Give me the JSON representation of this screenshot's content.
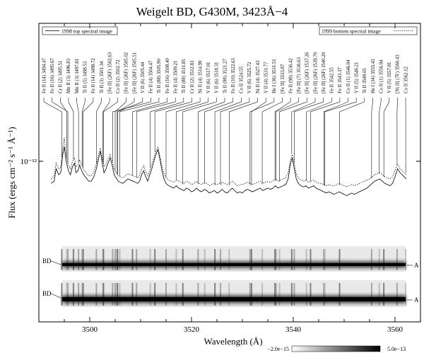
{
  "chart_data": {
    "type": "line",
    "title": "Weigelt BD, G430M, 3423Å−4",
    "xlabel": "Wavelength (Å)",
    "ylabel": "Flux (ergs cm⁻² s⁻¹ Å⁻¹)",
    "y_scale": "log",
    "y_tick_label": "10⁻¹²",
    "y_tick_value": 1e-12,
    "xlim": [
      3490,
      3565
    ],
    "x_ticks": [
      3500,
      3520,
      3540,
      3560
    ],
    "x_tick_labels": [
      "3500",
      "3520",
      "3540",
      "3560"
    ],
    "legend_top_left": "1998 top spectral image",
    "legend_top_right": "1999 bottom spectral image",
    "series": [
      {
        "name": "1998 top spectral image",
        "style": "solid",
        "x": [
          3492.4,
          3493.0,
          3493.4,
          3493.9,
          3494.3,
          3494.7,
          3495.0,
          3495.3,
          3495.8,
          3496.2,
          3496.6,
          3497.0,
          3497.3,
          3497.7,
          3498.0,
          3498.4,
          3498.8,
          3499.3,
          3499.8,
          3500.3,
          3500.8,
          3501.3,
          3501.8,
          3502.1,
          3502.4,
          3502.8,
          3503.2,
          3503.6,
          3504.0,
          3504.4,
          3504.8,
          3505.2,
          3505.6,
          3506.0,
          3506.5,
          3507.0,
          3507.5,
          3508.0,
          3508.5,
          3509.0,
          3509.4,
          3509.8,
          3510.2,
          3510.6,
          3511.0,
          3511.4,
          3511.8,
          3512.2,
          3512.6,
          3513.0,
          3513.4,
          3513.8,
          3514.2,
          3514.6,
          3515.0,
          3515.5,
          3516.0,
          3516.5,
          3517.0,
          3517.5,
          3518.0,
          3518.5,
          3519.0,
          3519.5,
          3520.0,
          3520.5,
          3521.0,
          3521.5,
          3522.0,
          3522.5,
          3523.0,
          3523.5,
          3524.0,
          3524.5,
          3525.0,
          3525.5,
          3526.0,
          3526.5,
          3527.0,
          3527.5,
          3528.0,
          3528.5,
          3529.0,
          3529.5,
          3530.0,
          3530.5,
          3531.0,
          3531.5,
          3532.0,
          3532.5,
          3533.0,
          3533.5,
          3534.0,
          3534.5,
          3535.0,
          3535.5,
          3536.0,
          3536.5,
          3537.0,
          3537.5,
          3538.0,
          3538.5,
          3539.0,
          3539.4,
          3539.8,
          3540.2,
          3540.6,
          3541.0,
          3541.5,
          3542.0,
          3542.5,
          3543.0,
          3543.5,
          3544.0,
          3544.5,
          3545.0,
          3545.5,
          3546.0,
          3546.5,
          3547.0,
          3547.5,
          3548.0,
          3548.5,
          3549.0,
          3549.5,
          3550.0,
          3550.5,
          3551.0,
          3551.5,
          3552.0,
          3552.5,
          3553.0,
          3553.5,
          3554.0,
          3554.5,
          3555.0,
          3555.5,
          3556.0,
          3556.5,
          3557.0,
          3557.5,
          3558.0,
          3558.5,
          3559.0,
          3559.5,
          3560.0,
          3560.5,
          3561.0,
          3561.4,
          3561.8,
          3562.2
        ],
        "y": [
          0.78,
          0.8,
          0.92,
          0.86,
          0.88,
          1.08,
          1.18,
          1.02,
          0.9,
          0.86,
          0.94,
          0.98,
          0.88,
          0.9,
          0.96,
          0.9,
          0.86,
          0.83,
          0.8,
          0.8,
          0.84,
          0.92,
          1.05,
          1.12,
          1.0,
          0.88,
          0.92,
          0.98,
          1.04,
          0.96,
          0.86,
          0.83,
          0.8,
          0.79,
          0.78,
          0.8,
          0.82,
          0.81,
          0.8,
          0.79,
          0.78,
          0.8,
          0.86,
          0.9,
          0.84,
          0.8,
          0.86,
          0.92,
          1.0,
          1.08,
          1.14,
          1.02,
          0.9,
          0.82,
          0.78,
          0.76,
          0.75,
          0.74,
          0.76,
          0.74,
          0.73,
          0.72,
          0.74,
          0.73,
          0.71,
          0.72,
          0.74,
          0.72,
          0.71,
          0.73,
          0.72,
          0.7,
          0.71,
          0.72,
          0.7,
          0.71,
          0.73,
          0.71,
          0.7,
          0.72,
          0.74,
          0.72,
          0.7,
          0.71,
          0.7,
          0.72,
          0.73,
          0.72,
          0.71,
          0.72,
          0.73,
          0.74,
          0.72,
          0.73,
          0.74,
          0.73,
          0.74,
          0.76,
          0.74,
          0.75,
          0.76,
          0.77,
          0.82,
          0.96,
          1.04,
          0.92,
          0.82,
          0.78,
          0.76,
          0.75,
          0.76,
          0.74,
          0.75,
          0.76,
          0.74,
          0.73,
          0.72,
          0.71,
          0.7,
          0.71,
          0.7,
          0.69,
          0.7,
          0.71,
          0.7,
          0.69,
          0.68,
          0.69,
          0.7,
          0.69,
          0.7,
          0.71,
          0.72,
          0.73,
          0.74,
          0.76,
          0.78,
          0.8,
          0.81,
          0.82,
          0.8,
          0.78,
          0.77,
          0.76,
          0.78,
          0.84,
          0.92,
          0.88,
          0.86,
          0.84,
          0.82
        ]
      },
      {
        "name": "1999 bottom spectral image",
        "style": "dotted",
        "x": [
          3492.4,
          3493.0,
          3493.4,
          3493.9,
          3494.3,
          3494.7,
          3495.0,
          3495.3,
          3495.8,
          3496.2,
          3496.6,
          3497.0,
          3497.3,
          3497.7,
          3498.0,
          3498.4,
          3498.8,
          3499.3,
          3499.8,
          3500.3,
          3500.8,
          3501.3,
          3501.8,
          3502.1,
          3502.4,
          3502.8,
          3503.2,
          3503.6,
          3504.0,
          3504.4,
          3504.8,
          3505.2,
          3505.6,
          3506.0,
          3506.5,
          3507.0,
          3507.5,
          3508.0,
          3508.5,
          3509.0,
          3509.4,
          3509.8,
          3510.2,
          3510.6,
          3511.0,
          3511.4,
          3511.8,
          3512.2,
          3512.6,
          3513.0,
          3513.4,
          3513.8,
          3514.2,
          3514.6,
          3515.0,
          3515.5,
          3516.0,
          3516.5,
          3517.0,
          3517.5,
          3518.0,
          3518.5,
          3519.0,
          3519.5,
          3520.0,
          3520.5,
          3521.0,
          3521.5,
          3522.0,
          3522.5,
          3523.0,
          3523.5,
          3524.0,
          3524.5,
          3525.0,
          3525.5,
          3526.0,
          3526.5,
          3527.0,
          3527.5,
          3528.0,
          3528.5,
          3529.0,
          3529.5,
          3530.0,
          3530.5,
          3531.0,
          3531.5,
          3532.0,
          3532.5,
          3533.0,
          3533.5,
          3534.0,
          3534.5,
          3535.0,
          3535.5,
          3536.0,
          3536.5,
          3537.0,
          3537.5,
          3538.0,
          3538.5,
          3539.0,
          3539.4,
          3539.8,
          3540.2,
          3540.6,
          3541.0,
          3541.5,
          3542.0,
          3542.5,
          3543.0,
          3543.5,
          3544.0,
          3544.5,
          3545.0,
          3545.5,
          3546.0,
          3546.5,
          3547.0,
          3547.5,
          3548.0,
          3548.5,
          3549.0,
          3549.5,
          3550.0,
          3550.5,
          3551.0,
          3551.5,
          3552.0,
          3552.5,
          3553.0,
          3553.5,
          3554.0,
          3554.5,
          3555.0,
          3555.5,
          3556.0,
          3556.5,
          3557.0,
          3557.5,
          3558.0,
          3558.5,
          3559.0,
          3559.5,
          3560.0,
          3560.5,
          3561.0,
          3561.4,
          3561.8,
          3562.2
        ],
        "y": [
          0.82,
          0.85,
          0.98,
          0.92,
          0.94,
          1.16,
          1.3,
          1.1,
          0.96,
          0.92,
          1.0,
          1.04,
          0.94,
          0.96,
          1.02,
          0.96,
          0.91,
          0.88,
          0.85,
          0.85,
          0.89,
          0.97,
          1.1,
          1.16,
          1.05,
          0.94,
          0.97,
          1.03,
          1.08,
          1.01,
          0.91,
          0.88,
          0.85,
          0.84,
          0.83,
          0.85,
          0.87,
          0.86,
          0.85,
          0.84,
          0.83,
          0.85,
          0.91,
          0.95,
          0.89,
          0.85,
          0.9,
          0.97,
          1.04,
          1.12,
          1.17,
          1.06,
          0.95,
          0.87,
          0.83,
          0.81,
          0.8,
          0.79,
          0.81,
          0.8,
          0.79,
          0.78,
          0.8,
          0.79,
          0.77,
          0.78,
          0.8,
          0.78,
          0.77,
          0.79,
          0.78,
          0.76,
          0.77,
          0.78,
          0.77,
          0.78,
          0.79,
          0.78,
          0.77,
          0.78,
          0.8,
          0.78,
          0.76,
          0.77,
          0.77,
          0.78,
          0.79,
          0.78,
          0.77,
          0.78,
          0.79,
          0.8,
          0.78,
          0.79,
          0.8,
          0.79,
          0.8,
          0.82,
          0.8,
          0.81,
          0.82,
          0.83,
          0.88,
          1.0,
          1.08,
          0.97,
          0.87,
          0.83,
          0.81,
          0.8,
          0.81,
          0.79,
          0.8,
          0.81,
          0.79,
          0.78,
          0.78,
          0.77,
          0.76,
          0.77,
          0.76,
          0.76,
          0.77,
          0.78,
          0.77,
          0.76,
          0.75,
          0.76,
          0.77,
          0.76,
          0.77,
          0.78,
          0.79,
          0.8,
          0.81,
          0.82,
          0.84,
          0.86,
          0.87,
          0.88,
          0.86,
          0.84,
          0.83,
          0.82,
          0.84,
          0.9,
          0.97,
          0.92,
          0.9,
          0.88,
          0.86
        ]
      }
    ],
    "line_labels": [
      {
        "label": "Fe II (14) 3494.47",
        "x": 3494.5
      },
      {
        "label": "Fe II (16) 3495.67",
        "x": 3495.7
      },
      {
        "label": "Cr II (2) 3495.51",
        "x": 3495.5
      },
      {
        "label": "Mn II (3) 3496.83",
        "x": 3496.8
      },
      {
        "label": "Mn II (3) 3497.81",
        "x": 3497.8
      },
      {
        "label": "Ti II (5) 3498.53",
        "x": 3498.5
      },
      {
        "label": "Fe II (14) 3498.72",
        "x": 3498.7
      },
      {
        "label": "Ti II (3) 3501.34",
        "x": 3501.3
      },
      {
        "label": "[Fe II] (26F) 3502.63",
        "x": 3502.6
      },
      {
        "label": "Co II (2) 3502.72",
        "x": 3502.7
      },
      {
        "label": "[Fe II] (26F) 3505.02",
        "x": 3505.0
      },
      {
        "label": "[Fe II] (26F) 3505.51",
        "x": 3505.5
      },
      {
        "label": "V II (6) 3505.44",
        "x": 3505.4
      },
      {
        "label": "Fe II (4) 3504.47",
        "x": 3504.5
      },
      {
        "label": "Ti II (88) 3505.90",
        "x": 3505.9
      },
      {
        "label": "Fe II (16) 3508.40",
        "x": 3508.4
      },
      {
        "label": "Fe II (4) 3509.21",
        "x": 3509.2
      },
      {
        "label": "Ti II (88) 3511.85",
        "x": 3511.9
      },
      {
        "label": "Cr II (2) 3512.83",
        "x": 3512.8
      },
      {
        "label": "Ni II (4) 3514.99",
        "x": 3515.0
      },
      {
        "label": "V II (6) 3517.01",
        "x": 3517.0
      },
      {
        "label": "V II (6) 3518.31",
        "x": 3518.3
      },
      {
        "label": "Ti II (98) 3521.27",
        "x": 3521.3
      },
      {
        "label": "Fe II (10) 3522.63",
        "x": 3522.6
      },
      {
        "label": "Co II 3524.55",
        "x": 3524.6
      },
      {
        "label": "V II (6) 3525.72",
        "x": 3525.7
      },
      {
        "label": "Ni II (4) 3527.43",
        "x": 3527.4
      },
      {
        "label": "V II (4) 3531.77",
        "x": 3531.8
      },
      {
        "label": "He I (36) 3531.51",
        "x": 3531.5
      },
      {
        "label": "[Fe II] 3533.87",
        "x": 3533.9
      },
      {
        "label": "Fe II (98) 3536.42",
        "x": 3536.4
      },
      {
        "label": "[Fe II] (7) 3536.63",
        "x": 3536.6
      },
      {
        "label": "[Fe II] (26F) 3537.26",
        "x": 3537.3
      },
      {
        "label": "[Fe II] (26F) 3539.70",
        "x": 3539.7
      },
      {
        "label": "[Fe II] (26F) 3540.20",
        "x": 3540.2
      },
      {
        "label": "Fe II 3542.55",
        "x": 3542.6
      },
      {
        "label": "Fe II 3543.37",
        "x": 3543.4
      },
      {
        "label": "Co II (1) 3546.04",
        "x": 3546.0
      },
      {
        "label": "V II (5) 3546.21",
        "x": 3546.2
      },
      {
        "label": "Ti II 3549.05",
        "x": 3549.1
      },
      {
        "label": "He I (34) 3555.43",
        "x": 3555.4
      },
      {
        "label": "Co II (1) 3556.94",
        "x": 3556.9
      },
      {
        "label": "V II (5) 3557.81",
        "x": 3557.8
      },
      {
        "label": "[Ni II] (7F) 3560.43",
        "x": 3560.4
      },
      {
        "label": "Co II 3562.12",
        "x": 3562.1
      }
    ],
    "spectral_images": {
      "top_left_label": "BD",
      "top_right_label": "A",
      "bottom_left_label": "BD",
      "bottom_right_label": "A",
      "colorbar_min_label": "−2.0e−15",
      "colorbar_max_label": "5.0e−13"
    }
  }
}
